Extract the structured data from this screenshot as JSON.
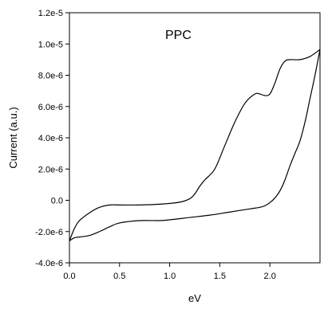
{
  "chart_data": {
    "type": "line",
    "title": "PPC",
    "xlabel": "eV",
    "ylabel": "Current (a.u.)",
    "xlim": [
      0.0,
      2.5
    ],
    "ylim": [
      -4e-06,
      1.2e-05
    ],
    "grid": false,
    "legend": false,
    "x_ticks": [
      0.0,
      0.5,
      1.0,
      1.5,
      2.0
    ],
    "x_tick_labels": [
      "0.0",
      "0.5",
      "1.0",
      "1.5",
      "2.0"
    ],
    "y_ticks": [
      -4e-06,
      -2e-06,
      0,
      2e-06,
      4e-06,
      6e-06,
      8e-06,
      1e-05,
      1.2e-05
    ],
    "y_tick_labels": [
      "-4.0e-6",
      "-2.0e-6",
      "0.0",
      "2.0e-6",
      "4.0e-6",
      "6.0e-6",
      "8.0e-6",
      "1.0e-5",
      "1.2e-5"
    ],
    "series": [
      {
        "color": "#000000",
        "x": [
          0.0,
          0.05,
          0.1,
          0.2,
          0.3,
          0.4,
          0.5,
          0.7,
          0.9,
          1.1,
          1.2,
          1.25,
          1.3,
          1.35,
          1.45,
          1.55,
          1.65,
          1.75,
          1.85,
          1.9,
          1.95,
          2.0,
          2.05,
          2.1,
          2.15,
          2.2,
          2.3,
          2.4,
          2.5
        ],
        "y": [
          -2.6e-06,
          -1.8e-06,
          -1.3e-06,
          -8e-07,
          -4.5e-07,
          -3e-07,
          -3e-07,
          -3e-07,
          -2.5e-07,
          -1.2e-07,
          1e-07,
          4e-07,
          9e-07,
          1.3e-06,
          2e-06,
          3.5e-06,
          5e-06,
          6.2e-06,
          6.8e-06,
          6.8e-06,
          6.7e-06,
          6.8e-06,
          7.5e-06,
          8.4e-06,
          8.9e-06,
          9e-06,
          9e-06,
          9.2e-06,
          9.65e-06
        ]
      },
      {
        "color": "#000000",
        "x": [
          2.5,
          2.45,
          2.4,
          2.35,
          2.3,
          2.25,
          2.2,
          2.15,
          2.1,
          2.05,
          2.0,
          1.95,
          1.9,
          1.8,
          1.6,
          1.4,
          1.2,
          1.0,
          0.9,
          0.7,
          0.5,
          0.4,
          0.3,
          0.2,
          0.1,
          0.05,
          0.0
        ],
        "y": [
          9.65e-06,
          8e-06,
          6.5e-06,
          5e-06,
          3.8e-06,
          3e-06,
          2.2e-06,
          1.3e-06,
          6e-07,
          1.5e-07,
          -1.5e-07,
          -3.5e-07,
          -4.5e-07,
          -5.5e-07,
          -7.5e-07,
          -9.5e-07,
          -1.1e-06,
          -1.25e-06,
          -1.3e-06,
          -1.3e-06,
          -1.45e-06,
          -1.7e-06,
          -2e-06,
          -2.25e-06,
          -2.35e-06,
          -2.4e-06,
          -2.6e-06
        ]
      }
    ]
  }
}
